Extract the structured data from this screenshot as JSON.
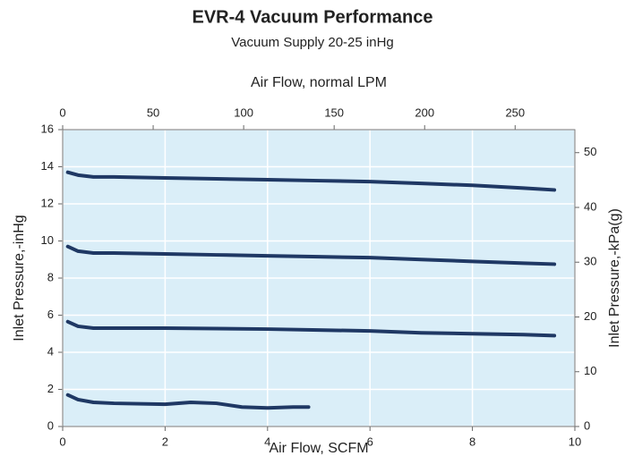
{
  "chart_data": {
    "type": "line",
    "title": "EVR-4 Vacuum Performance",
    "subtitle": "Vacuum Supply 20-25 inHg",
    "xlabel": "Air Flow, SCFM",
    "x2label": "Air Flow, normal LPM",
    "ylabel": "Inlet Pressure,-inHg",
    "y2label": "Inlet Pressure,-kPa(g)",
    "xlim": [
      0,
      10
    ],
    "xticks": [
      0,
      2,
      4,
      6,
      8,
      10
    ],
    "x2lim": [
      0,
      283
    ],
    "x2ticks": [
      0,
      50,
      100,
      150,
      200,
      250
    ],
    "ylim": [
      0,
      16
    ],
    "yticks": [
      0,
      2,
      4,
      6,
      8,
      10,
      12,
      14,
      16
    ],
    "y2lim": [
      0,
      54.2
    ],
    "y2ticks": [
      0,
      10,
      20,
      30,
      40,
      50
    ],
    "grid": true,
    "plot_background": "#daeef8",
    "series": [
      {
        "color": "#1f3864",
        "x": [
          0.1,
          0.3,
          0.6,
          1,
          2,
          3,
          4,
          5,
          6,
          7,
          8,
          9,
          9.6
        ],
        "values": [
          13.7,
          13.55,
          13.45,
          13.45,
          13.4,
          13.35,
          13.3,
          13.25,
          13.2,
          13.1,
          13.0,
          12.85,
          12.75
        ]
      },
      {
        "color": "#1f3864",
        "x": [
          0.1,
          0.3,
          0.6,
          1,
          2,
          3,
          4,
          5,
          6,
          7,
          8,
          9,
          9.6
        ],
        "values": [
          9.7,
          9.45,
          9.35,
          9.35,
          9.3,
          9.25,
          9.2,
          9.15,
          9.1,
          9.0,
          8.9,
          8.8,
          8.75
        ]
      },
      {
        "color": "#1f3864",
        "x": [
          0.1,
          0.3,
          0.6,
          1,
          2,
          3,
          4,
          5,
          6,
          7,
          8,
          9,
          9.6
        ],
        "values": [
          5.65,
          5.4,
          5.3,
          5.3,
          5.3,
          5.28,
          5.25,
          5.2,
          5.15,
          5.05,
          5.0,
          4.95,
          4.9
        ]
      },
      {
        "color": "#1f3864",
        "x": [
          0.1,
          0.3,
          0.6,
          1,
          2,
          2.5,
          3,
          3.5,
          4,
          4.5,
          4.8
        ],
        "values": [
          1.7,
          1.45,
          1.3,
          1.25,
          1.2,
          1.3,
          1.25,
          1.05,
          1.0,
          1.05,
          1.05
        ]
      }
    ]
  }
}
